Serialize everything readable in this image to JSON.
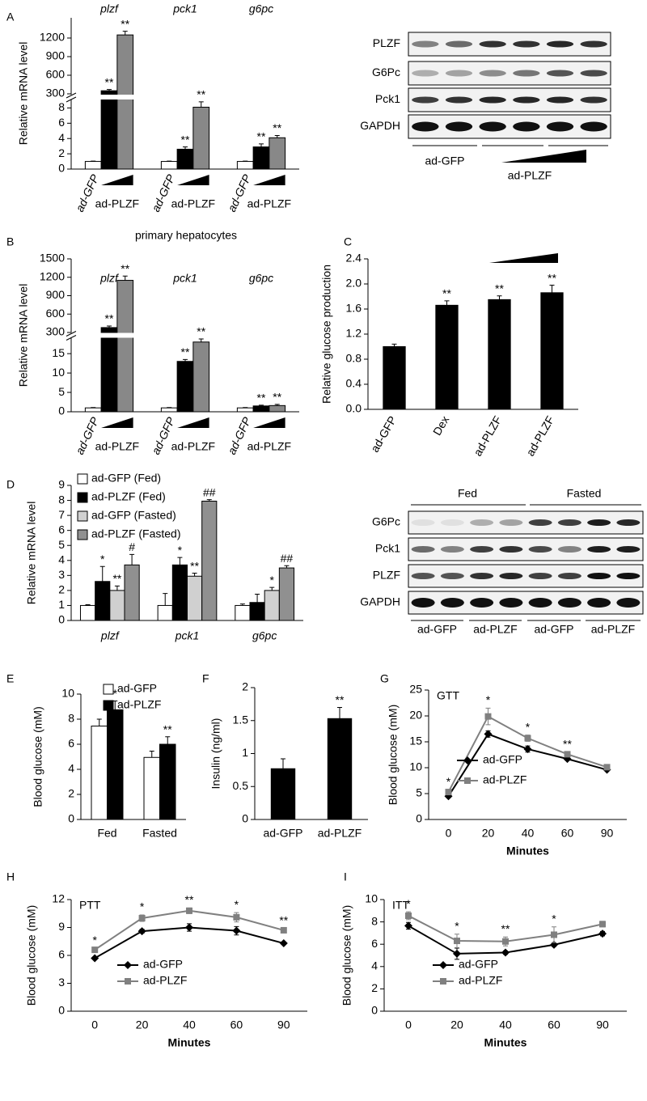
{
  "chart_data": [
    {
      "panel": "A",
      "type": "bar",
      "ylabel": "Relative mRNA level",
      "categories": [
        "plzf",
        "pck1",
        "g6pc"
      ],
      "group_labels": [
        "ad-GFP",
        "ad-PLZF"
      ],
      "y_segments": [
        {
          "ylim": [
            0,
            9
          ],
          "yticks": [
            0,
            2,
            4,
            6,
            8
          ]
        },
        {
          "ylim": [
            300,
            1500
          ],
          "yticks": [
            300,
            600,
            900,
            1200
          ]
        }
      ],
      "series": [
        {
          "color": "#ffffff",
          "values": [
            1,
            1,
            1
          ],
          "errors": [
            0.05,
            0.05,
            0.05
          ]
        },
        {
          "color": "#000000",
          "values": [
            350,
            2.6,
            2.9
          ],
          "errors": [
            20,
            0.3,
            0.4
          ],
          "significance": [
            "**",
            "**",
            "**"
          ]
        },
        {
          "color": "#888888",
          "values": [
            1250,
            8.1,
            4.1
          ],
          "errors": [
            60,
            0.7,
            0.3
          ],
          "significance": [
            "**",
            "**",
            "**"
          ]
        }
      ]
    },
    {
      "panel": "B",
      "type": "bar",
      "title": "primary hepatocytes",
      "ylabel": "Relative mRNA level",
      "categories": [
        "plzf",
        "pck1",
        "g6pc"
      ],
      "group_labels": [
        "ad-GFP",
        "ad-PLZF"
      ],
      "y_segments": [
        {
          "ylim": [
            0,
            19
          ],
          "yticks": [
            0,
            5,
            10,
            15
          ]
        },
        {
          "ylim": [
            300,
            1500
          ],
          "yticks": [
            300,
            600,
            900,
            1200,
            1500
          ]
        }
      ],
      "series": [
        {
          "color": "#ffffff",
          "values": [
            1,
            1,
            1
          ],
          "errors": [
            0.1,
            0.1,
            0.1
          ]
        },
        {
          "color": "#000000",
          "values": [
            380,
            13,
            1.5
          ],
          "errors": [
            25,
            0.5,
            0.2
          ],
          "significance": [
            "**",
            "**",
            "**"
          ]
        },
        {
          "color": "#888888",
          "values": [
            1150,
            18,
            1.6
          ],
          "errors": [
            70,
            0.8,
            0.3
          ],
          "significance": [
            "**",
            "**",
            "**"
          ]
        }
      ]
    },
    {
      "panel": "C",
      "type": "bar",
      "ylabel": "Relative glucose production",
      "categories": [
        "ad-GFP",
        "Dex",
        "ad-PLZF",
        "ad-PLZF"
      ],
      "rotate_xlabels": true,
      "color": "#000000",
      "values": [
        1.0,
        1.66,
        1.75,
        1.86
      ],
      "errors": [
        0.04,
        0.07,
        0.06,
        0.12
      ],
      "significance": [
        null,
        "**",
        "**",
        "**"
      ],
      "ylim": [
        0,
        2.4
      ],
      "yticks": [
        {
          "value": 0,
          "label": "0.0"
        },
        0.4,
        0.8,
        1.2,
        1.6,
        {
          "value": 2,
          "label": "2.0"
        },
        2.4
      ]
    },
    {
      "panel": "D",
      "type": "bar",
      "ylabel": "Relative mRNA level",
      "categories": [
        "plzf",
        "pck1",
        "g6pc"
      ],
      "legend": "top-left",
      "ylim": [
        0,
        9
      ],
      "yticks": [
        0,
        1,
        2,
        3,
        4,
        5,
        6,
        7,
        8,
        9
      ],
      "series": [
        {
          "name": "ad-GFP (Fed)",
          "color": "#ffffff",
          "values": [
            1,
            1,
            1
          ],
          "errors": [
            0.05,
            0.8,
            0.1
          ]
        },
        {
          "name": "ad-PLZF (Fed)",
          "color": "#000000",
          "values": [
            2.6,
            3.7,
            1.2
          ],
          "errors": [
            1.0,
            0.5,
            0.55
          ],
          "significance": [
            "*",
            "*",
            null
          ]
        },
        {
          "name": "ad-GFP (Fasted)",
          "color": "#d0d0d0",
          "values": [
            2.0,
            2.95,
            2.0
          ],
          "errors": [
            0.3,
            0.2,
            0.2
          ],
          "significance": [
            "**",
            "**",
            "*"
          ]
        },
        {
          "name": "ad-PLZF (Fasted)",
          "color": "#909090",
          "values": [
            3.7,
            7.95,
            3.5
          ],
          "errors": [
            0.7,
            0.1,
            0.15
          ],
          "significance": [
            "#",
            "##",
            "##"
          ]
        }
      ]
    },
    {
      "panel": "E",
      "type": "bar",
      "ylabel": "Blood glucose (mM)",
      "categories": [
        "Fed",
        "Fasted"
      ],
      "legend": "top-right",
      "ylim": [
        0,
        10
      ],
      "yticks": [
        0,
        2,
        4,
        6,
        8,
        10
      ],
      "series": [
        {
          "name": "ad-GFP",
          "color": "#ffffff",
          "values": [
            7.45,
            4.95
          ],
          "errors": [
            0.55,
            0.5
          ]
        },
        {
          "name": "ad-PLZF",
          "color": "#000000",
          "values": [
            8.75,
            6.0
          ],
          "errors": [
            0.7,
            0.6
          ],
          "significance": [
            "*",
            "**"
          ]
        }
      ]
    },
    {
      "panel": "F",
      "type": "bar",
      "ylabel": "Insulin (ng/ml)",
      "categories": [
        "ad-GFP",
        "ad-PLZF"
      ],
      "color": "#000000",
      "values": [
        0.77,
        1.53
      ],
      "errors": [
        0.15,
        0.17
      ],
      "significance": [
        null,
        "**"
      ],
      "ylim": [
        0,
        2
      ],
      "yticks": [
        0,
        0.5,
        1,
        1.5,
        2
      ]
    },
    {
      "panel": "G",
      "type": "line",
      "label": "GTT",
      "ylabel": "Blood glucose (mM)",
      "xlabel": "Minutes",
      "categories": [
        "0",
        "20",
        "40",
        "60",
        "90"
      ],
      "legend": "bottom-right",
      "ylim": [
        0,
        25
      ],
      "yticks": [
        0,
        5,
        10,
        15,
        20,
        25
      ],
      "series": [
        {
          "name": "ad-GFP",
          "color": "#000000",
          "marker": "diamond",
          "values": [
            4.5,
            16.5,
            13.6,
            11.7,
            9.6
          ],
          "errors": [
            0.3,
            0.6,
            0.6,
            0.3,
            0.2
          ]
        },
        {
          "name": "ad-PLZF",
          "color": "#808080",
          "marker": "square",
          "values": [
            5.3,
            19.9,
            15.7,
            12.6,
            10.1
          ],
          "errors": [
            0.4,
            1.6,
            0.6,
            0.4,
            0.3
          ],
          "significance": [
            "*",
            "*",
            "*",
            "**",
            null
          ]
        }
      ]
    },
    {
      "panel": "H",
      "type": "line",
      "label": "PTT",
      "ylabel": "Blood glucose (mM)",
      "xlabel": "Minutes",
      "categories": [
        "0",
        "20",
        "40",
        "60",
        "90"
      ],
      "legend": "bottom-left",
      "ylim": [
        0,
        12
      ],
      "yticks": [
        0,
        3,
        6,
        9,
        12
      ],
      "series": [
        {
          "name": "ad-GFP",
          "color": "#000000",
          "marker": "diamond",
          "values": [
            5.7,
            8.6,
            9.0,
            8.65,
            7.3
          ],
          "errors": [
            0.1,
            0.2,
            0.4,
            0.45,
            0.1
          ]
        },
        {
          "name": "ad-PLZF",
          "color": "#808080",
          "marker": "square",
          "values": [
            6.6,
            10.0,
            10.8,
            10.1,
            8.7
          ],
          "errors": [
            0.15,
            0.35,
            0.3,
            0.5,
            0.2
          ],
          "significance": [
            "*",
            "*",
            "**",
            "*",
            "**"
          ]
        }
      ]
    },
    {
      "panel": "I",
      "type": "line",
      "label": "ITT",
      "ylabel": "Blood glucose (mM)",
      "xlabel": "Minutes",
      "categories": [
        "0",
        "20",
        "40",
        "60",
        "90"
      ],
      "legend": "bottom-left",
      "ylim": [
        0,
        10
      ],
      "yticks": [
        0,
        2,
        4,
        6,
        8,
        10
      ],
      "series": [
        {
          "name": "ad-GFP",
          "color": "#000000",
          "marker": "diamond",
          "values": [
            7.65,
            5.15,
            5.25,
            5.95,
            6.95
          ],
          "errors": [
            0.3,
            0.5,
            0.15,
            0.15,
            0.2
          ]
        },
        {
          "name": "ad-PLZF",
          "color": "#808080",
          "marker": "square",
          "values": [
            8.55,
            6.3,
            6.25,
            6.85,
            7.8
          ],
          "errors": [
            0.35,
            0.6,
            0.4,
            0.7,
            0.25
          ],
          "significance": [
            "*",
            "*",
            "**",
            "*",
            null
          ]
        }
      ]
    }
  ],
  "blots": [
    {
      "rows": [
        "PLZF",
        "G6Pc",
        "Pck1",
        "GAPDH"
      ],
      "lanes": [
        "ad-GFP",
        "ad-PLZF"
      ]
    },
    {
      "groups": [
        "Fed",
        "Fasted"
      ],
      "rows": [
        "G6Pc",
        "Pck1",
        "PLZF",
        "GAPDH"
      ],
      "lanes": [
        "ad-GFP",
        "ad-PLZF",
        "ad-GFP",
        "ad-PLZF"
      ]
    }
  ]
}
